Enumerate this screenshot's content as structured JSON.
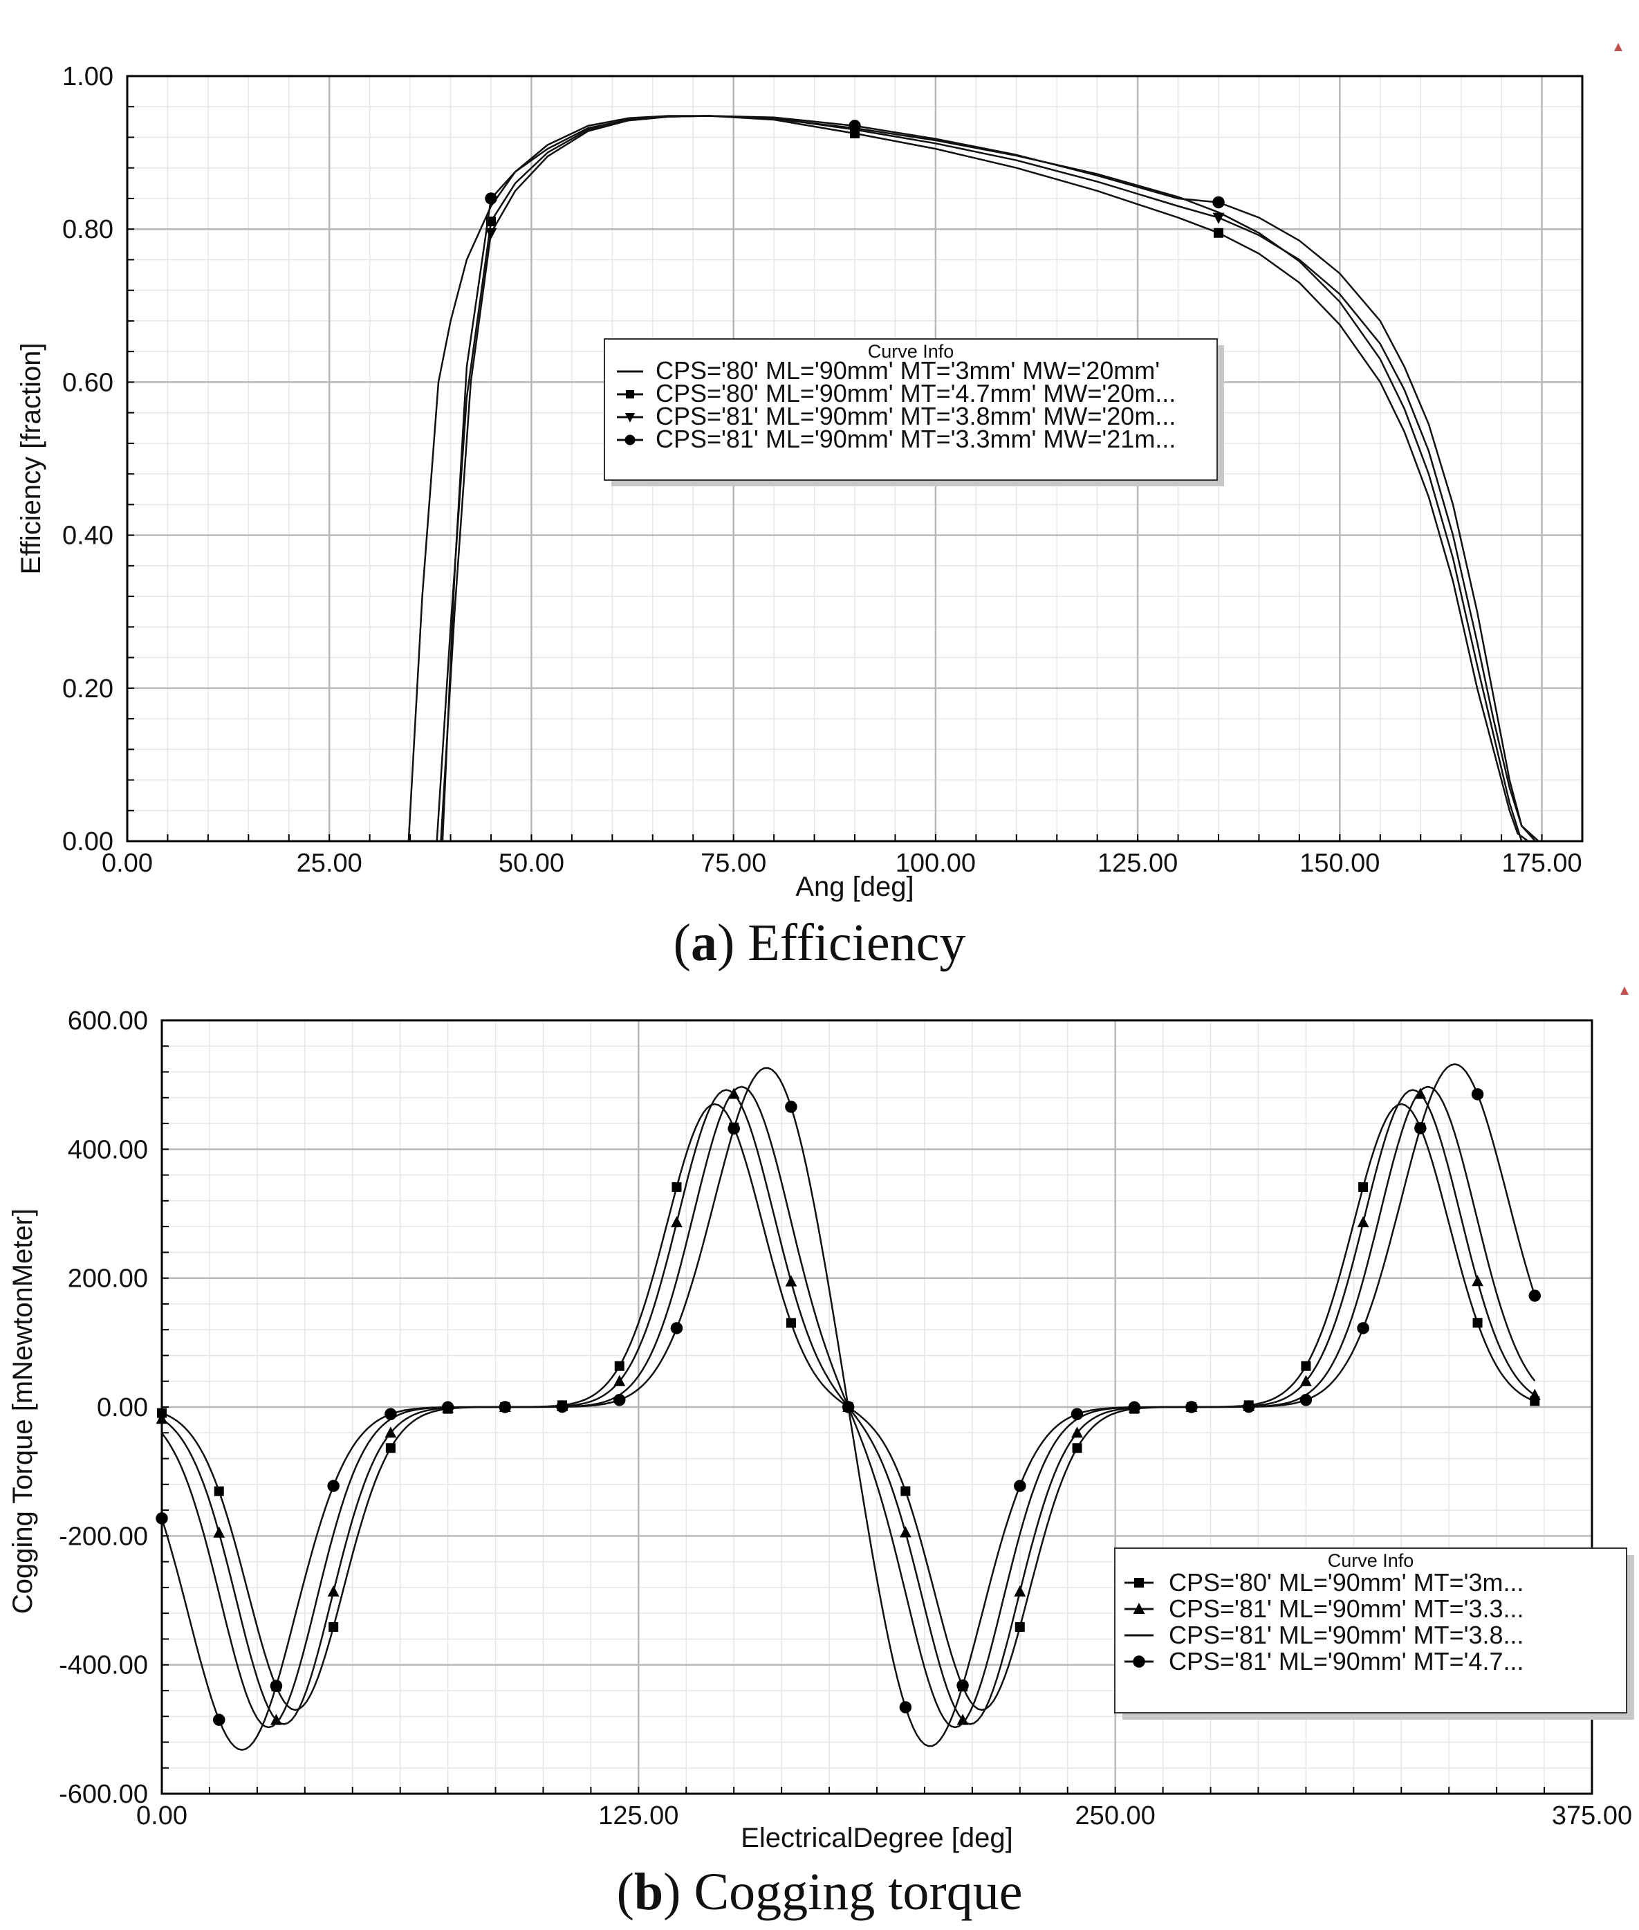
{
  "chart_data": [
    {
      "type": "line",
      "caption_label": "a",
      "caption_title": "Efficiency",
      "xlabel": "Ang [deg]",
      "ylabel": "Efficiency [fraction]",
      "xlim": [
        0,
        180
      ],
      "ylim": [
        0,
        1
      ],
      "xticks": [
        "0.00",
        "25.00",
        "50.00",
        "75.00",
        "100.00",
        "125.00",
        "150.00",
        "175.00"
      ],
      "yticks": [
        "0.00",
        "0.20",
        "0.40",
        "0.60",
        "0.80",
        "1.00"
      ],
      "legend_title": "Curve Info",
      "legend_position": "center",
      "series": [
        {
          "name": "CPS='80' ML='90mm' MT='3mm' MW='20mm'",
          "marker": "none",
          "x": [
            34.8,
            36.5,
            38.5,
            40,
            42,
            45,
            48,
            52,
            57,
            62,
            67,
            72,
            80,
            90,
            100,
            110,
            120,
            130,
            135,
            140,
            145,
            150,
            155,
            158,
            161,
            164,
            167,
            169,
            171,
            172.5
          ],
          "y": [
            0,
            0.32,
            0.6,
            0.68,
            0.76,
            0.83,
            0.875,
            0.91,
            0.935,
            0.945,
            0.948,
            0.948,
            0.944,
            0.932,
            0.916,
            0.896,
            0.872,
            0.842,
            0.822,
            0.795,
            0.758,
            0.705,
            0.63,
            0.565,
            0.48,
            0.37,
            0.23,
            0.14,
            0.05,
            0
          ]
        },
        {
          "name": "CPS='80' ML='90mm' MT='4.7mm' MW='20m...",
          "marker": "square",
          "x": [
            38.3,
            40,
            42,
            45,
            48,
            52,
            57,
            62,
            67,
            72,
            80,
            90,
            100,
            110,
            120,
            130,
            135,
            140,
            145,
            150,
            155,
            158,
            161,
            164,
            167,
            169,
            171,
            172,
            173.3
          ],
          "y": [
            0,
            0.28,
            0.58,
            0.81,
            0.86,
            0.9,
            0.93,
            0.942,
            0.947,
            0.948,
            0.943,
            0.925,
            0.905,
            0.88,
            0.85,
            0.815,
            0.795,
            0.768,
            0.73,
            0.675,
            0.6,
            0.535,
            0.45,
            0.34,
            0.2,
            0.12,
            0.04,
            0.01,
            0
          ],
          "marker_x": [
            45,
            90,
            135
          ],
          "marker_y": [
            0.81,
            0.925,
            0.795
          ]
        },
        {
          "name": "CPS='81' ML='90mm' MT='3.8mm' MW='20m...",
          "marker": "triangle-down",
          "x": [
            38.8,
            40.5,
            42.5,
            45,
            48,
            52,
            57,
            62,
            67,
            72,
            80,
            90,
            100,
            110,
            120,
            130,
            135,
            140,
            145,
            150,
            155,
            158,
            161,
            164,
            167,
            169,
            171,
            172.5,
            174.2
          ],
          "y": [
            0,
            0.3,
            0.6,
            0.795,
            0.85,
            0.895,
            0.928,
            0.942,
            0.947,
            0.948,
            0.945,
            0.93,
            0.912,
            0.89,
            0.862,
            0.83,
            0.815,
            0.792,
            0.76,
            0.715,
            0.65,
            0.59,
            0.51,
            0.4,
            0.26,
            0.16,
            0.07,
            0.02,
            0
          ],
          "marker_x": [
            45,
            90,
            135
          ],
          "marker_y": [
            0.795,
            0.93,
            0.815
          ]
        },
        {
          "name": "CPS='81' ML='90mm' MT='3.3mm' MW='21m...",
          "marker": "circle",
          "x": [
            39,
            40.5,
            42,
            45,
            48,
            52,
            57,
            62,
            67,
            72,
            80,
            90,
            100,
            110,
            120,
            130,
            135,
            140,
            145,
            150,
            155,
            158,
            161,
            164,
            167,
            169,
            171,
            172.5,
            174.6
          ],
          "y": [
            0,
            0.35,
            0.62,
            0.84,
            0.875,
            0.905,
            0.932,
            0.943,
            0.947,
            0.948,
            0.946,
            0.935,
            0.918,
            0.897,
            0.87,
            0.84,
            0.835,
            0.815,
            0.785,
            0.742,
            0.68,
            0.62,
            0.545,
            0.44,
            0.3,
            0.19,
            0.08,
            0.02,
            0
          ],
          "marker_x": [
            45,
            90,
            135
          ],
          "marker_y": [
            0.84,
            0.935,
            0.835
          ]
        }
      ]
    },
    {
      "type": "line",
      "caption_label": "b",
      "caption_title": "Cogging torque",
      "xlabel": "ElectricalDegree [deg]",
      "ylabel": "Cogging Torque [mNewtonMeter]",
      "xlim": [
        0,
        375
      ],
      "ylim": [
        -600,
        600
      ],
      "xticks": [
        "0.00",
        "125.00",
        "250.00",
        "375.00"
      ],
      "yticks": [
        "-600.00",
        "-400.00",
        "-200.00",
        "0.00",
        "200.00",
        "400.00",
        "600.00"
      ],
      "legend_title": "Curve Info",
      "legend_position": "bottom-right",
      "series": [
        {
          "name": "CPS='80' ML='90mm' MT='3m...",
          "marker": "square",
          "amplitude": 470,
          "shift": 0,
          "width": 12.5,
          "marker_x": [
            0,
            15,
            30,
            45,
            60,
            75,
            90,
            105,
            120,
            135,
            150,
            165,
            180,
            195,
            210,
            225,
            240,
            255,
            270,
            285,
            300,
            315,
            330,
            345,
            360
          ]
        },
        {
          "name": "CPS='81' ML='90mm' MT='3.3...",
          "marker": "triangle",
          "amplitude": 492,
          "shift": -3,
          "width": 12.5,
          "marker_x": [
            0,
            15,
            30,
            45,
            60,
            75,
            90,
            105,
            120,
            135,
            150,
            165,
            180,
            195,
            210,
            225,
            240,
            255,
            270,
            285,
            300,
            315,
            330,
            345,
            360
          ]
        },
        {
          "name": "CPS='81' ML='90mm' MT='3.8...",
          "marker": "none",
          "amplitude": 497,
          "shift": -7,
          "width": 12.5,
          "marker_x": []
        },
        {
          "name": "CPS='81' ML='90mm' MT='4.7...",
          "marker": "circle",
          "amplitude": 532,
          "shift": -14,
          "width": 14,
          "marker_x": [
            0,
            15,
            30,
            45,
            60,
            75,
            90,
            105,
            120,
            135,
            150,
            165,
            180,
            195,
            210,
            225,
            240,
            255,
            270,
            285,
            300,
            315,
            330,
            345,
            360
          ]
        }
      ]
    }
  ]
}
